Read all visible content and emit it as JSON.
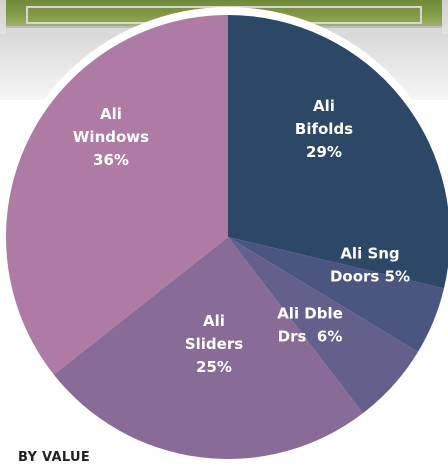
{
  "footer": {
    "label": "BY VALUE"
  },
  "chart_data": {
    "type": "pie",
    "title": "",
    "slices": [
      {
        "label": [
          "Ali",
          "Bifolds",
          "29%"
        ],
        "value": 29,
        "color": "#2c4866"
      },
      {
        "label": [
          "Ali Sng",
          "Doors 5%"
        ],
        "value": 5,
        "color": "#4a5680"
      },
      {
        "label": [
          "Ali Dble",
          "Drs  6%"
        ],
        "value": 6,
        "color": "#64608c"
      },
      {
        "label": [
          "Ali",
          "Sliders",
          "25%"
        ],
        "value": 25,
        "color": "#896b98"
      },
      {
        "label": [
          "Ali",
          "Windows",
          "36%"
        ],
        "value": 36,
        "color": "#ad7ba3"
      }
    ]
  }
}
